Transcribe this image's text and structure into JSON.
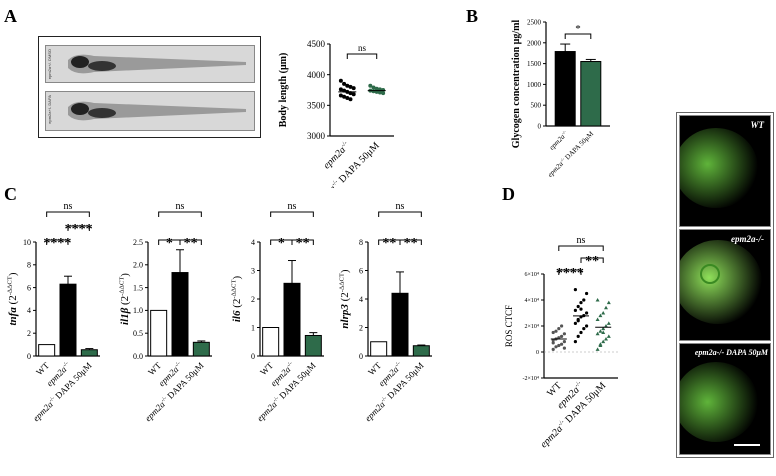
{
  "panels": {
    "A": "A",
    "B": "B",
    "C": "C",
    "D": "D"
  },
  "fish_images": {
    "top_label": "epm2a+/- DMSO",
    "bottom_label": "epm2a+/- DAPA"
  },
  "micro_images": {
    "labels": [
      "WT",
      "epm2a-/-",
      "epm2a-/- DAPA 50μM"
    ]
  },
  "colors": {
    "green": "#2e6b4a",
    "black": "#000000",
    "white": "#ffffff"
  },
  "chart_data": [
    {
      "id": "A_body_length",
      "type": "scatter",
      "ylabel": "Body length (μm)",
      "ylim": [
        3000,
        4500
      ],
      "yticks": [
        "3000",
        "3500",
        "4000",
        "4500"
      ],
      "categories": [
        "epm2a-/-",
        "epm2a-/- DAPA 50μM"
      ],
      "significance": "ns",
      "series": [
        {
          "color": "#000000",
          "values": [
            3900,
            3850,
            3820,
            3800,
            3780,
            3760,
            3740,
            3720,
            3700,
            3680,
            3660,
            3640,
            3620,
            3600
          ]
        },
        {
          "color": "#2e6b4a",
          "values": [
            3820,
            3790,
            3770,
            3760,
            3750,
            3740,
            3730,
            3720,
            3710,
            3700
          ]
        }
      ]
    },
    {
      "id": "B_glycogen",
      "type": "bar",
      "ylabel": "Glycogen concentration μg/ml",
      "ylim": [
        0,
        2500
      ],
      "yticks": [
        "0",
        "500",
        "1000",
        "1500",
        "2000",
        "2500"
      ],
      "categories": [
        "epm2a-/-",
        "epm2a-/- DAPA 50μM"
      ],
      "values": [
        1790,
        1550
      ],
      "errors": [
        180,
        50
      ],
      "fills": [
        "#000000",
        "#2e6b4a"
      ],
      "significance": "*"
    },
    {
      "id": "C_tnfa",
      "type": "bar",
      "ylabel_gene": "tnfa",
      "ylabel_rest": " (2",
      "ylabel_sup": "-ΔΔCT",
      "ylabel_end": ")",
      "ylim": [
        0,
        10
      ],
      "yticks": [
        "0",
        "2",
        "4",
        "6",
        "8",
        "10"
      ],
      "categories": [
        "WT",
        "epm2a-/-",
        "epm2a-/- DAPA 50μM"
      ],
      "values": [
        1.0,
        6.3,
        0.55
      ],
      "errors": [
        0,
        0.7,
        0.1
      ],
      "fills": [
        "#ffffff",
        "#000000",
        "#2e6b4a"
      ],
      "brackets": [
        {
          "from": 0,
          "to": 1,
          "label": "****",
          "level": 1
        },
        {
          "from": 1,
          "to": 2,
          "label": "****",
          "level": 2
        },
        {
          "from": 0,
          "to": 2,
          "label": "ns",
          "level": 3
        }
      ]
    },
    {
      "id": "C_il1b",
      "type": "bar",
      "ylabel_gene": "il1β",
      "ylabel_rest": " (2",
      "ylabel_sup": "-ΔΔCT",
      "ylabel_end": ")",
      "ylim": [
        0,
        2.5
      ],
      "yticks": [
        "0.0",
        "0.5",
        "1.0",
        "1.5",
        "2.0",
        "2.5"
      ],
      "categories": [
        "WT",
        "epm2a-/-",
        "epm2a-/- DAPA 50μM"
      ],
      "values": [
        1.0,
        1.83,
        0.3
      ],
      "errors": [
        0,
        0.5,
        0.03
      ],
      "fills": [
        "#ffffff",
        "#000000",
        "#2e6b4a"
      ],
      "brackets": [
        {
          "from": 0,
          "to": 1,
          "label": "*",
          "level": 1
        },
        {
          "from": 1,
          "to": 2,
          "label": "**",
          "level": 1
        },
        {
          "from": 0,
          "to": 2,
          "label": "ns",
          "level": 3
        }
      ]
    },
    {
      "id": "C_il6",
      "type": "bar",
      "ylabel_gene": "il6",
      "ylabel_rest": " (2",
      "ylabel_sup": "-ΔΔCT",
      "ylabel_end": ")",
      "ylim": [
        0,
        4
      ],
      "yticks": [
        "0",
        "1",
        "2",
        "3",
        "4"
      ],
      "categories": [
        "WT",
        "epm2a-/-",
        "epm2a-/- DAPA 50μM"
      ],
      "values": [
        1.0,
        2.55,
        0.72
      ],
      "errors": [
        0,
        0.8,
        0.1
      ],
      "fills": [
        "#ffffff",
        "#000000",
        "#2e6b4a"
      ],
      "brackets": [
        {
          "from": 0,
          "to": 1,
          "label": "*",
          "level": 1
        },
        {
          "from": 1,
          "to": 2,
          "label": "**",
          "level": 1
        },
        {
          "from": 0,
          "to": 2,
          "label": "ns",
          "level": 3
        }
      ]
    },
    {
      "id": "C_nlrp3",
      "type": "bar",
      "ylabel_gene": "nlrp3",
      "ylabel_rest": " (2",
      "ylabel_sup": "-ΔΔCT",
      "ylabel_end": ")",
      "ylim": [
        0,
        8
      ],
      "yticks": [
        "0",
        "2",
        "4",
        "6",
        "8"
      ],
      "categories": [
        "WT",
        "epm2a-/-",
        "epm2a-/- DAPA 50μM"
      ],
      "values": [
        1.0,
        4.4,
        0.72
      ],
      "errors": [
        0,
        1.5,
        0.05
      ],
      "fills": [
        "#ffffff",
        "#000000",
        "#2e6b4a"
      ],
      "brackets": [
        {
          "from": 0,
          "to": 1,
          "label": "**",
          "level": 1
        },
        {
          "from": 1,
          "to": 2,
          "label": "**",
          "level": 1
        },
        {
          "from": 0,
          "to": 2,
          "label": "ns",
          "level": 3
        }
      ]
    },
    {
      "id": "D_ros",
      "type": "scatter",
      "ylabel": "ROS CTCF",
      "ylim": [
        -20000,
        60000
      ],
      "yticks": [
        "-2×10⁴",
        "0",
        "2×10⁴",
        "4×10⁴",
        "6×10⁴"
      ],
      "categories": [
        "WT",
        "epm2a-/-",
        "epm2a-/- DAPA 50μM"
      ],
      "brackets": [
        {
          "from": 0,
          "to": 1,
          "label": "****",
          "level": 1
        },
        {
          "from": 1,
          "to": 2,
          "label": "**",
          "level": 2
        },
        {
          "from": 0,
          "to": 2,
          "label": "ns",
          "level": 3
        }
      ],
      "series": [
        {
          "color": "#555555",
          "values": [
            2000,
            4000,
            5000,
            6000,
            8000,
            9000,
            10000,
            11000,
            12000,
            14000,
            15000,
            16000,
            18000,
            20000,
            3000,
            7000
          ]
        },
        {
          "color": "#000000",
          "values": [
            8000,
            12000,
            15000,
            18000,
            20000,
            22000,
            25000,
            27000,
            28000,
            30000,
            32000,
            35000,
            38000,
            40000,
            45000,
            48000,
            24000,
            33000
          ]
        },
        {
          "color": "#2e6b4a",
          "values": [
            2000,
            5000,
            8000,
            10000,
            12000,
            14000,
            16000,
            18000,
            20000,
            22000,
            25000,
            28000,
            30000,
            34000,
            38000,
            40000,
            6000,
            15000
          ]
        }
      ]
    }
  ]
}
